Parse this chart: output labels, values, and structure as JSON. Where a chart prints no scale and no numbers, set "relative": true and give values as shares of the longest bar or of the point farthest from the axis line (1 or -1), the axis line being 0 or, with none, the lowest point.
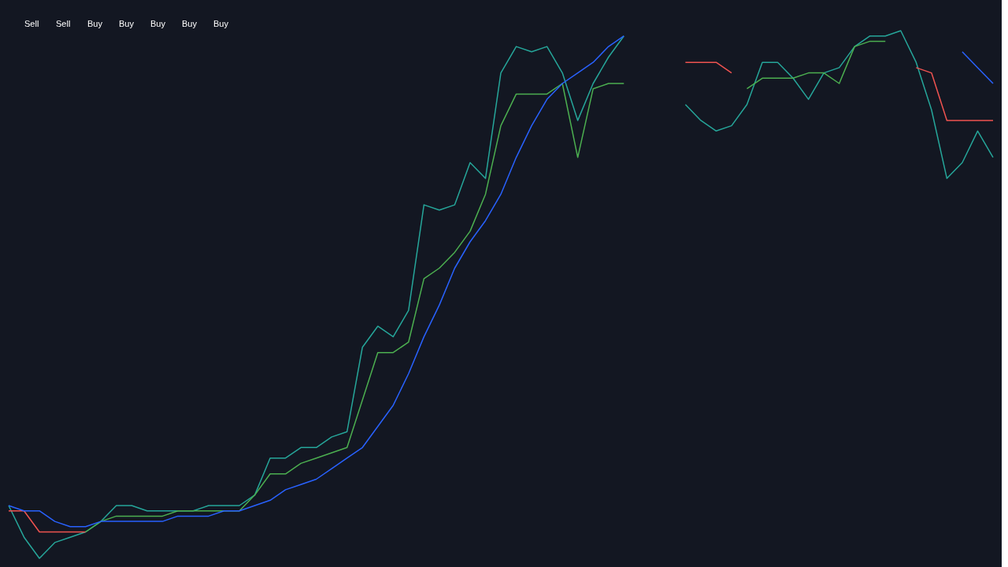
{
  "chart_data": {
    "type": "line",
    "relative": true,
    "line_style": "solid",
    "categories": [
      null,
      null,
      null,
      null,
      null,
      null,
      null,
      null,
      null,
      null,
      null,
      null,
      null,
      null,
      null,
      null,
      null,
      null,
      null,
      null,
      null,
      null,
      null,
      null,
      null,
      null,
      null,
      null,
      null,
      null,
      null,
      null,
      null,
      null,
      null,
      null,
      null,
      null,
      null,
      null,
      null,
      null,
      null,
      null,
      null,
      null,
      null,
      null,
      null,
      null,
      null,
      null,
      null,
      null,
      null,
      null,
      null,
      null,
      null,
      null,
      null,
      null,
      null,
      null,
      null
    ],
    "series": [
      {
        "color": "#26a69a",
        "values": [
          0.1,
          0.04,
          0.0,
          0.03,
          0.04,
          0.05,
          0.07,
          0.1,
          0.1,
          0.09,
          0.09,
          0.09,
          0.09,
          0.1,
          0.1,
          0.1,
          0.12,
          0.19,
          0.19,
          0.21,
          0.21,
          0.23,
          0.24,
          0.4,
          0.44,
          0.42,
          0.47,
          0.67,
          0.66,
          0.67,
          0.75,
          0.72,
          0.92,
          0.97,
          0.96,
          0.97,
          0.92,
          0.83,
          0.9,
          0.95,
          0.99,
          null,
          null,
          null,
          null,
          null,
          null,
          null,
          null,
          null,
          null,
          null,
          null,
          null,
          null,
          null,
          null,
          null,
          null,
          null,
          null,
          null,
          null,
          null,
          null
        ]
      },
      {
        "color": "#26a69a",
        "values": [
          null,
          null,
          null,
          null,
          null,
          null,
          null,
          null,
          null,
          null,
          null,
          null,
          null,
          null,
          null,
          null,
          null,
          null,
          null,
          null,
          null,
          null,
          null,
          null,
          null,
          null,
          null,
          null,
          null,
          null,
          null,
          null,
          null,
          null,
          null,
          null,
          null,
          null,
          null,
          null,
          null,
          null,
          null,
          null,
          0.86,
          0.83,
          0.81,
          0.82,
          0.86,
          0.94,
          0.94,
          0.91,
          0.87,
          0.92,
          0.93,
          0.97,
          0.99,
          0.99,
          1.0,
          0.94,
          0.85,
          0.72,
          0.75,
          0.81,
          0.76
        ]
      },
      {
        "color": "#ef5350",
        "values": [
          0.09,
          0.09,
          0.05,
          0.05,
          0.05,
          0.05,
          null,
          null,
          null,
          null,
          null,
          null,
          null,
          null,
          null,
          null,
          null,
          null,
          null,
          null,
          null,
          null,
          null,
          null,
          null,
          null,
          null,
          null,
          null,
          null,
          null,
          null,
          null,
          null,
          null,
          null,
          null,
          null,
          null,
          null,
          null,
          null,
          null,
          null,
          null,
          null,
          null,
          null,
          null,
          null,
          null,
          null,
          null,
          null,
          null,
          null,
          null,
          null,
          null,
          null,
          null,
          null,
          null,
          null,
          null
        ]
      },
      {
        "color": "#ef5350",
        "values": [
          null,
          null,
          null,
          null,
          null,
          null,
          null,
          null,
          null,
          null,
          null,
          null,
          null,
          null,
          null,
          null,
          null,
          null,
          null,
          null,
          null,
          null,
          null,
          null,
          null,
          null,
          null,
          null,
          null,
          null,
          null,
          null,
          null,
          null,
          null,
          null,
          null,
          null,
          null,
          null,
          null,
          null,
          null,
          null,
          0.94,
          0.94,
          0.94,
          0.92,
          null,
          null,
          null,
          null,
          null,
          null,
          null,
          null,
          null,
          null,
          null,
          null,
          null,
          null,
          null,
          null,
          null
        ]
      },
      {
        "color": "#ef5350",
        "values": [
          null,
          null,
          null,
          null,
          null,
          null,
          null,
          null,
          null,
          null,
          null,
          null,
          null,
          null,
          null,
          null,
          null,
          null,
          null,
          null,
          null,
          null,
          null,
          null,
          null,
          null,
          null,
          null,
          null,
          null,
          null,
          null,
          null,
          null,
          null,
          null,
          null,
          null,
          null,
          null,
          null,
          null,
          null,
          null,
          null,
          null,
          null,
          null,
          null,
          null,
          null,
          null,
          null,
          null,
          null,
          null,
          null,
          null,
          null,
          0.93,
          0.92,
          0.83,
          0.83,
          0.83,
          0.83
        ]
      },
      {
        "color": "#4caf50",
        "values": [
          null,
          null,
          null,
          null,
          null,
          0.05,
          0.07,
          0.08,
          0.08,
          0.08,
          0.08,
          0.09,
          0.09,
          0.09,
          0.09,
          0.09,
          0.12,
          0.16,
          0.16,
          0.18,
          0.19,
          0.2,
          0.21,
          0.3,
          0.39,
          0.39,
          0.41,
          0.53,
          0.55,
          0.58,
          0.62,
          0.69,
          0.82,
          0.88,
          0.88,
          0.88,
          0.9,
          0.76,
          0.89,
          0.9,
          0.9,
          null,
          null,
          null,
          null,
          null,
          null,
          null,
          null,
          null,
          null,
          null,
          null,
          null,
          null,
          null,
          null,
          null,
          null,
          null,
          null,
          null,
          null,
          null,
          null
        ]
      },
      {
        "color": "#4caf50",
        "values": [
          null,
          null,
          null,
          null,
          null,
          null,
          null,
          null,
          null,
          null,
          null,
          null,
          null,
          null,
          null,
          null,
          null,
          null,
          null,
          null,
          null,
          null,
          null,
          null,
          null,
          null,
          null,
          null,
          null,
          null,
          null,
          null,
          null,
          null,
          null,
          null,
          null,
          null,
          null,
          null,
          null,
          null,
          null,
          null,
          null,
          null,
          null,
          null,
          0.89,
          0.91,
          0.91,
          0.91,
          0.92,
          0.92,
          0.9,
          0.97,
          0.98,
          0.98,
          null,
          null,
          null,
          null,
          null,
          null,
          null
        ]
      },
      {
        "color": "#2962ff",
        "values": [
          0.1,
          0.09,
          0.09,
          0.07,
          0.06,
          0.06,
          0.07,
          0.07,
          0.07,
          0.07,
          0.07,
          0.08,
          0.08,
          0.08,
          0.09,
          0.09,
          0.1,
          0.11,
          0.13,
          0.14,
          0.15,
          0.17,
          0.19,
          0.21,
          0.25,
          0.29,
          0.35,
          0.42,
          0.48,
          0.55,
          0.6,
          0.64,
          0.69,
          0.76,
          0.82,
          0.87,
          0.9,
          0.92,
          0.94,
          0.97,
          0.99,
          null,
          null,
          null,
          null,
          null,
          null,
          null,
          null,
          null,
          null,
          null,
          null,
          null,
          null,
          null,
          null,
          null,
          null,
          null,
          null,
          null,
          null,
          null,
          null
        ]
      },
      {
        "color": "#2962ff",
        "values": [
          null,
          null,
          null,
          null,
          null,
          null,
          null,
          null,
          null,
          null,
          null,
          null,
          null,
          null,
          null,
          null,
          null,
          null,
          null,
          null,
          null,
          null,
          null,
          null,
          null,
          null,
          null,
          null,
          null,
          null,
          null,
          null,
          null,
          null,
          null,
          null,
          null,
          null,
          null,
          null,
          null,
          null,
          null,
          null,
          null,
          null,
          null,
          null,
          null,
          null,
          null,
          null,
          null,
          null,
          null,
          null,
          null,
          null,
          null,
          null,
          null,
          null,
          0.96,
          0.93,
          0.9
        ]
      }
    ],
    "annotations": [
      "Sell",
      "Sell",
      "Buy",
      "Buy",
      "Buy",
      "Buy",
      "Buy"
    ]
  }
}
